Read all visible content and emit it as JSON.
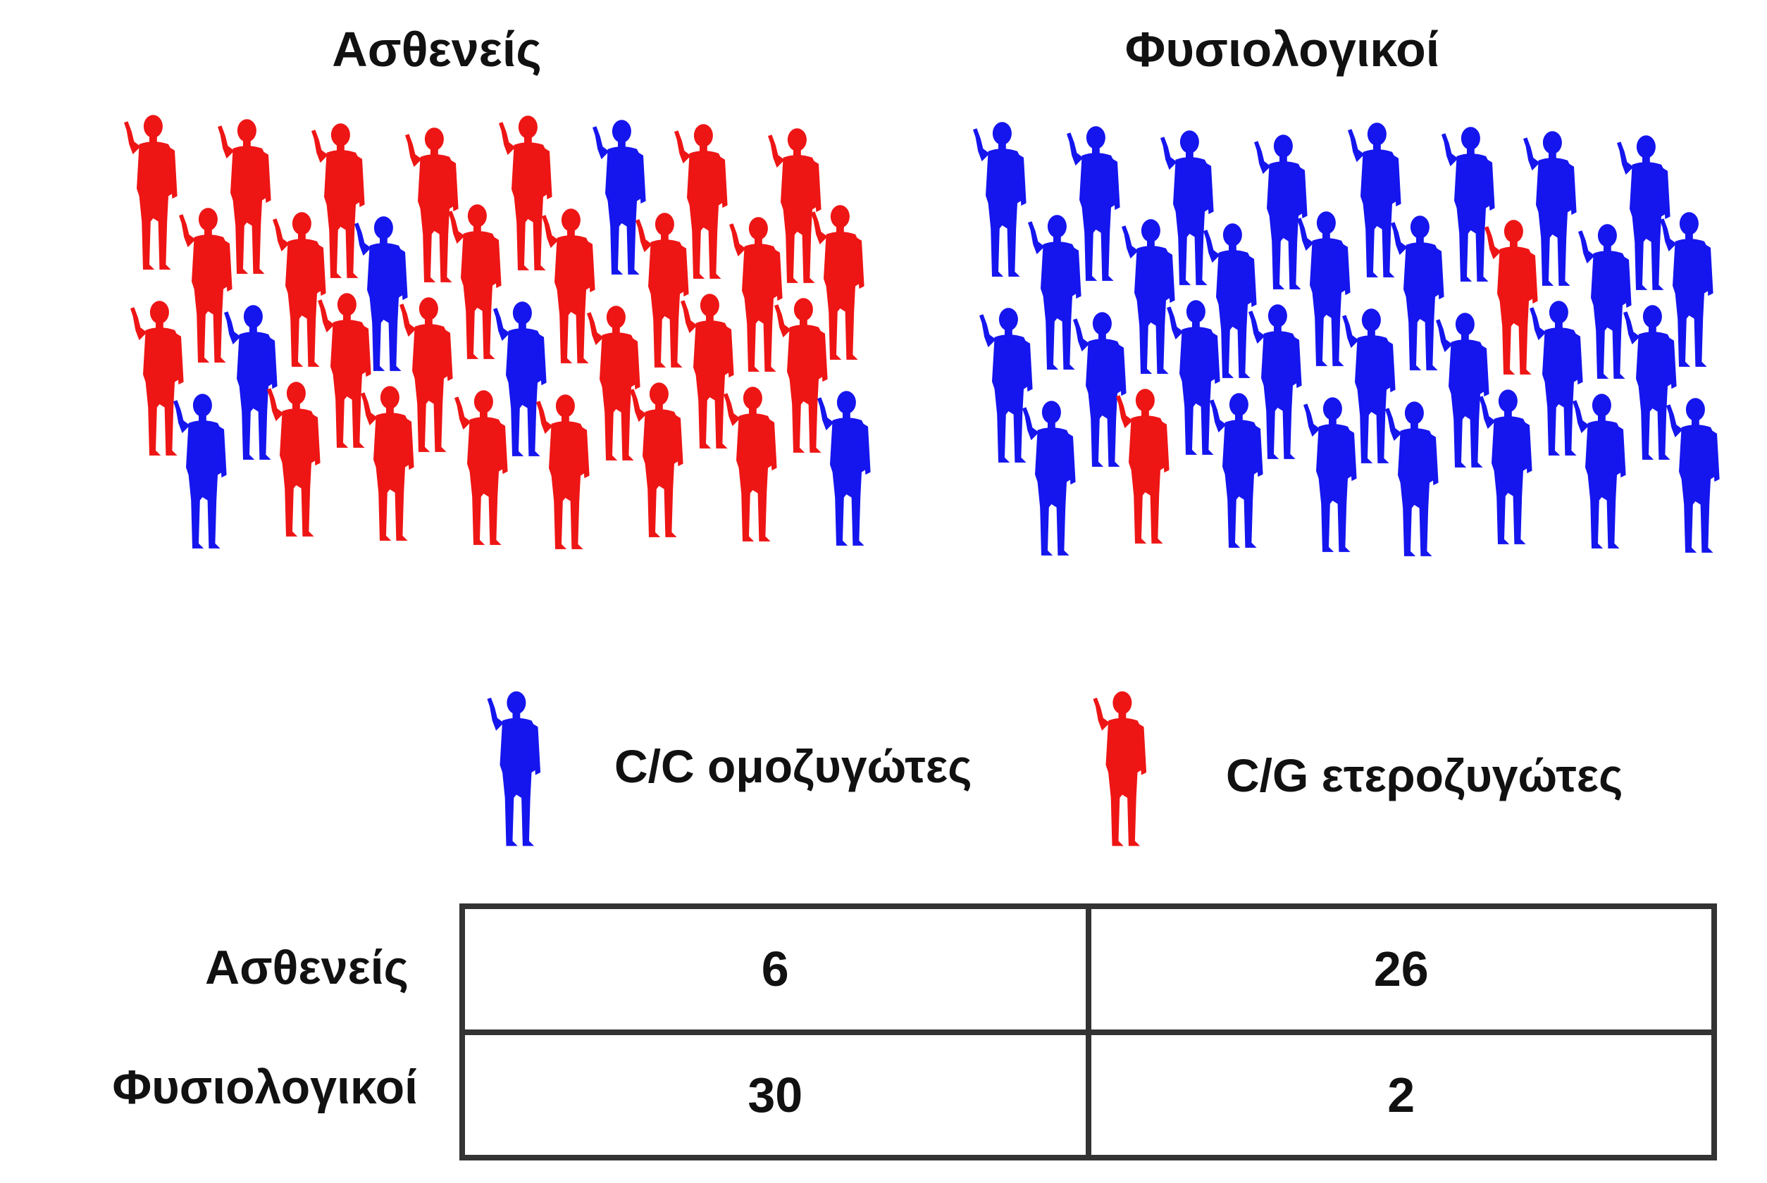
{
  "titles": {
    "patients": "Ασθενείς",
    "controls": "Φυσιολογικοί"
  },
  "colors": {
    "homozygous": "#1515ee",
    "heterozygous": "#ee1515"
  },
  "legend": {
    "homozygous": {
      "label": "C/C ομοζυγώτες",
      "icon": "person-silhouette-blue-icon"
    },
    "heterozygous": {
      "label": "C/G ετεροζυγώτες",
      "icon": "person-silhouette-red-icon"
    }
  },
  "groups": {
    "patients": {
      "homozygous": 6,
      "heterozygous": 26
    },
    "controls": {
      "homozygous": 30,
      "heterozygous": 2
    }
  },
  "table": {
    "rows": [
      {
        "label": "Ασθενείς",
        "cells": [
          "6",
          "26"
        ]
      },
      {
        "label": "Φυσιολογικοί",
        "cells": [
          "30",
          "2"
        ]
      }
    ]
  }
}
